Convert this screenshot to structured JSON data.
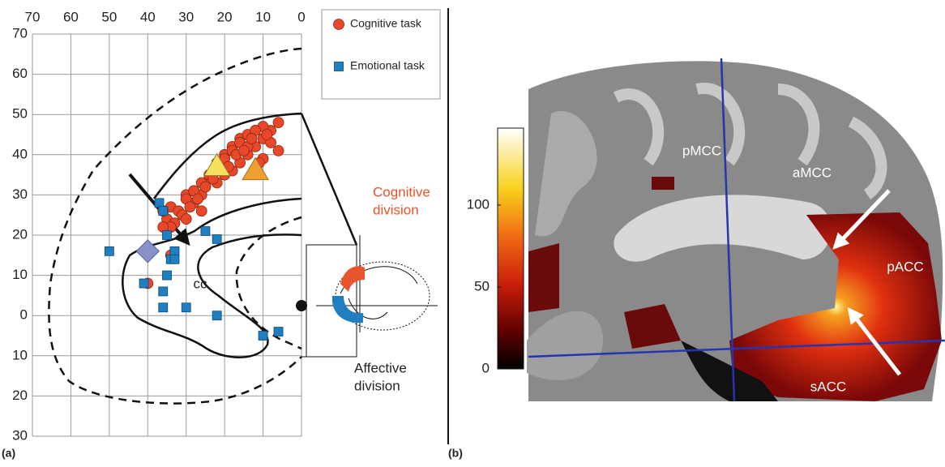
{
  "panels": [
    "(a)",
    "(b)"
  ],
  "chart_data": [
    {
      "type": "scatter",
      "xlim": [
        70,
        0
      ],
      "ylim": [
        -30,
        70
      ],
      "xticks": [
        70,
        60,
        50,
        40,
        30,
        20,
        10,
        0
      ],
      "yticks": [
        70,
        60,
        50,
        40,
        30,
        20,
        10,
        0,
        {
          "value": -10,
          "label": "10"
        },
        {
          "value": -20,
          "label": "20"
        },
        {
          "value": -30,
          "label": "30"
        }
      ],
      "grid": true,
      "legend": "top-right",
      "series": [
        {
          "name": "Cognitive task",
          "color": "#e8472a",
          "marker": "circle",
          "x": [
            30,
            28,
            25,
            22,
            20,
            18,
            16,
            14,
            12,
            10,
            8,
            6,
            28,
            26,
            24,
            22,
            20,
            18,
            16,
            14,
            12,
            10,
            8,
            6,
            34,
            32,
            30,
            28,
            26,
            24,
            22,
            20,
            18,
            16,
            14,
            12,
            10,
            35,
            33,
            31,
            29,
            27,
            25,
            23,
            21,
            19,
            17,
            15,
            13,
            11,
            9,
            34,
            30,
            26,
            40,
            34,
            36,
            36
          ],
          "y": [
            30,
            31,
            32,
            33,
            35,
            36,
            38,
            40,
            42,
            44,
            46,
            48,
            28,
            30,
            34,
            37,
            40,
            42,
            44,
            45,
            46,
            47,
            43,
            41,
            27,
            26,
            29,
            31,
            33,
            35,
            38,
            39,
            41,
            43,
            42,
            46,
            39,
            24,
            23,
            25,
            27,
            29,
            32,
            34,
            36,
            37,
            40,
            41,
            44,
            38,
            45,
            22,
            24,
            26,
            8,
            15,
            26,
            22
          ]
        },
        {
          "name": "Emotional task",
          "color": "#1f7fc0",
          "marker": "square",
          "x": [
            50,
            41,
            37,
            36,
            35,
            34,
            33,
            36,
            35,
            36,
            30,
            33,
            25,
            22,
            22,
            10,
            6
          ],
          "y": [
            16,
            8,
            28,
            26,
            20,
            14,
            16,
            6,
            10,
            2,
            2,
            14,
            21,
            19,
            0,
            -5,
            -4
          ]
        },
        {
          "color": "#f5e060",
          "marker": "triangle",
          "x": [
            22
          ],
          "y": [
            37
          ]
        },
        {
          "color": "#f0a030",
          "marker": "triangle",
          "x": [
            12
          ],
          "y": [
            36
          ]
        },
        {
          "color": "#8a90c8",
          "marker": "diamond",
          "x": [
            40
          ],
          "y": [
            16
          ]
        }
      ],
      "annotations": [
        {
          "lines": [
            "cc"
          ],
          "color": "#222"
        },
        {
          "lines": [
            "Cognitive",
            "division"
          ],
          "color": "#e8542b"
        },
        {
          "lines": [
            "Affective",
            "division"
          ],
          "color": "#222"
        }
      ]
    },
    {
      "type": "colorbar",
      "ylim": [
        0,
        147
      ],
      "yticks": [
        0,
        50,
        100
      ],
      "annotations": [
        "pMCC",
        "aMCC",
        "pACC",
        "sACC"
      ]
    }
  ]
}
